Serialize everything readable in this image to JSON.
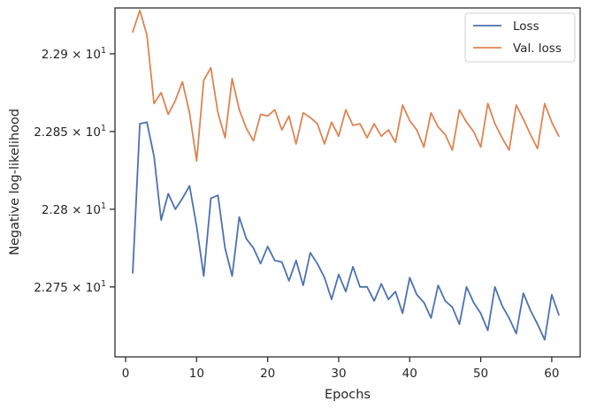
{
  "chart_data": {
    "type": "line",
    "xlabel": "Epochs",
    "ylabel": "Negative log-likelihood",
    "xlim": [
      -1.5,
      64
    ],
    "ylim": [
      22.705,
      22.9295
    ],
    "x_ticks": [
      {
        "value": 0,
        "label": "0"
      },
      {
        "value": 10,
        "label": "10"
      },
      {
        "value": 20,
        "label": "20"
      },
      {
        "value": 30,
        "label": "30"
      },
      {
        "value": 40,
        "label": "40"
      },
      {
        "value": 50,
        "label": "50"
      },
      {
        "value": 60,
        "label": "60"
      }
    ],
    "y_ticks": [
      {
        "value": 22.75,
        "mantissa": "2.275",
        "base": "10",
        "exponent": "1"
      },
      {
        "value": 22.8,
        "mantissa": "2.28",
        "base": "10",
        "exponent": "1"
      },
      {
        "value": 22.85,
        "mantissa": "2.285",
        "base": "10",
        "exponent": "1"
      },
      {
        "value": 22.9,
        "mantissa": "2.29",
        "base": "10",
        "exponent": "1"
      }
    ],
    "grid": false,
    "legend_position": "top-right",
    "x": [
      1,
      2,
      3,
      4,
      5,
      6,
      7,
      8,
      9,
      10,
      11,
      12,
      13,
      14,
      15,
      16,
      17,
      18,
      19,
      20,
      21,
      22,
      23,
      24,
      25,
      26,
      27,
      28,
      29,
      30,
      31,
      32,
      33,
      34,
      35,
      36,
      37,
      38,
      39,
      40,
      41,
      42,
      43,
      44,
      45,
      46,
      47,
      48,
      49,
      50,
      51,
      52,
      53,
      54,
      55,
      56,
      57,
      58,
      59,
      60,
      61
    ],
    "series": [
      {
        "name": "Loss",
        "color": "#4c72b0",
        "values": [
          22.759,
          22.855,
          22.856,
          22.834,
          22.793,
          22.81,
          22.8,
          22.807,
          22.815,
          22.789,
          22.757,
          22.807,
          22.809,
          22.775,
          22.757,
          22.795,
          22.781,
          22.775,
          22.765,
          22.776,
          22.767,
          22.766,
          22.754,
          22.767,
          22.751,
          22.772,
          22.765,
          22.756,
          22.742,
          22.758,
          22.747,
          22.763,
          22.75,
          22.75,
          22.741,
          22.752,
          22.742,
          22.747,
          22.733,
          22.756,
          22.745,
          22.74,
          22.73,
          22.751,
          22.741,
          22.737,
          22.726,
          22.75,
          22.74,
          22.733,
          22.722,
          22.75,
          22.738,
          22.73,
          22.72,
          22.746,
          22.735,
          22.726,
          22.716,
          22.745,
          22.732
        ]
      },
      {
        "name": "Val. loss",
        "color": "#dd8452",
        "values": [
          22.914,
          22.928,
          22.912,
          22.868,
          22.875,
          22.861,
          22.87,
          22.882,
          22.862,
          22.831,
          22.883,
          22.891,
          22.862,
          22.846,
          22.884,
          22.864,
          22.852,
          22.844,
          22.861,
          22.86,
          22.864,
          22.851,
          22.86,
          22.842,
          22.862,
          22.859,
          22.855,
          22.842,
          22.856,
          22.847,
          22.864,
          22.854,
          22.855,
          22.846,
          22.855,
          22.847,
          22.851,
          22.843,
          22.867,
          22.857,
          22.851,
          22.84,
          22.862,
          22.853,
          22.848,
          22.838,
          22.864,
          22.856,
          22.85,
          22.84,
          22.868,
          22.855,
          22.846,
          22.838,
          22.867,
          22.858,
          22.848,
          22.839,
          22.868,
          22.856,
          22.847
        ]
      }
    ]
  }
}
